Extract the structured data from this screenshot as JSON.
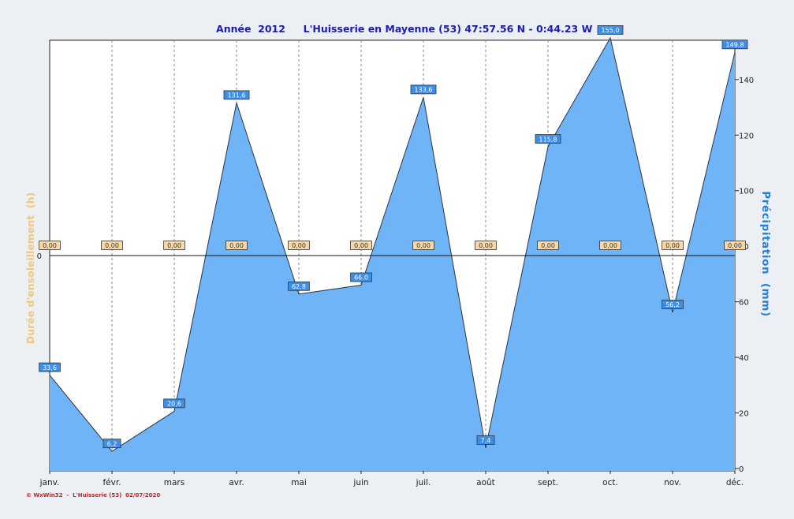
{
  "header": {
    "year_label": "Année  2012",
    "location": "L'Huisserie en Mayenne (53) 47:57.56 N - 0:44.23 W"
  },
  "footer": {
    "credit": "© WxWin32  -  L'Huisserie (53)  02/07/2020"
  },
  "colors": {
    "area_fill": "#70b4f8",
    "area_stroke": "#2a3340",
    "rain_label_bg": "#3c8ee8",
    "sun_label_bg": "#f8d8a8",
    "title": "#1c1cb0",
    "left_axis_title": "#f0c878",
    "right_axis_title": "#1e80e0",
    "footer": "#cc2020"
  },
  "chart_data": {
    "type": "area",
    "categories": [
      "janv.",
      "févr.",
      "mars",
      "avr.",
      "mai",
      "juin",
      "juil.",
      "août",
      "sept.",
      "oct.",
      "nov.",
      "déc."
    ],
    "series": [
      {
        "name": "Précipitation  (mm)",
        "axis": "right",
        "values": [
          33.6,
          6.2,
          20.6,
          131.6,
          62.8,
          66.0,
          133.6,
          7.4,
          115.8,
          155.0,
          56.2,
          149.8
        ],
        "labels": [
          "33,6",
          "6,2",
          "20,6",
          "131,6",
          "62,8",
          "66,0",
          "133,6",
          "7,4",
          "115,8",
          "155,0",
          "56,2",
          "149,8"
        ]
      },
      {
        "name": "Durée d'ensoleillement  (h)",
        "axis": "left",
        "values": [
          0,
          0,
          0,
          0,
          0,
          0,
          0,
          0,
          0,
          0,
          0,
          0
        ],
        "labels": [
          "0,00",
          "0,00",
          "0,00",
          "0,00",
          "0,00",
          "0,00",
          "0,00",
          "0,00",
          "0,00",
          "0,00",
          "0,00",
          "0,00"
        ]
      }
    ],
    "y_right": {
      "label": "Précipitation  (mm)",
      "ylim": [
        0,
        155
      ],
      "ticks": [
        0,
        20,
        40,
        60,
        80,
        100,
        120,
        140
      ]
    },
    "y_left": {
      "label": "Durée d'ensoleillement  (h)",
      "ticks": [
        0
      ]
    },
    "grid": "vertical-dashed"
  }
}
